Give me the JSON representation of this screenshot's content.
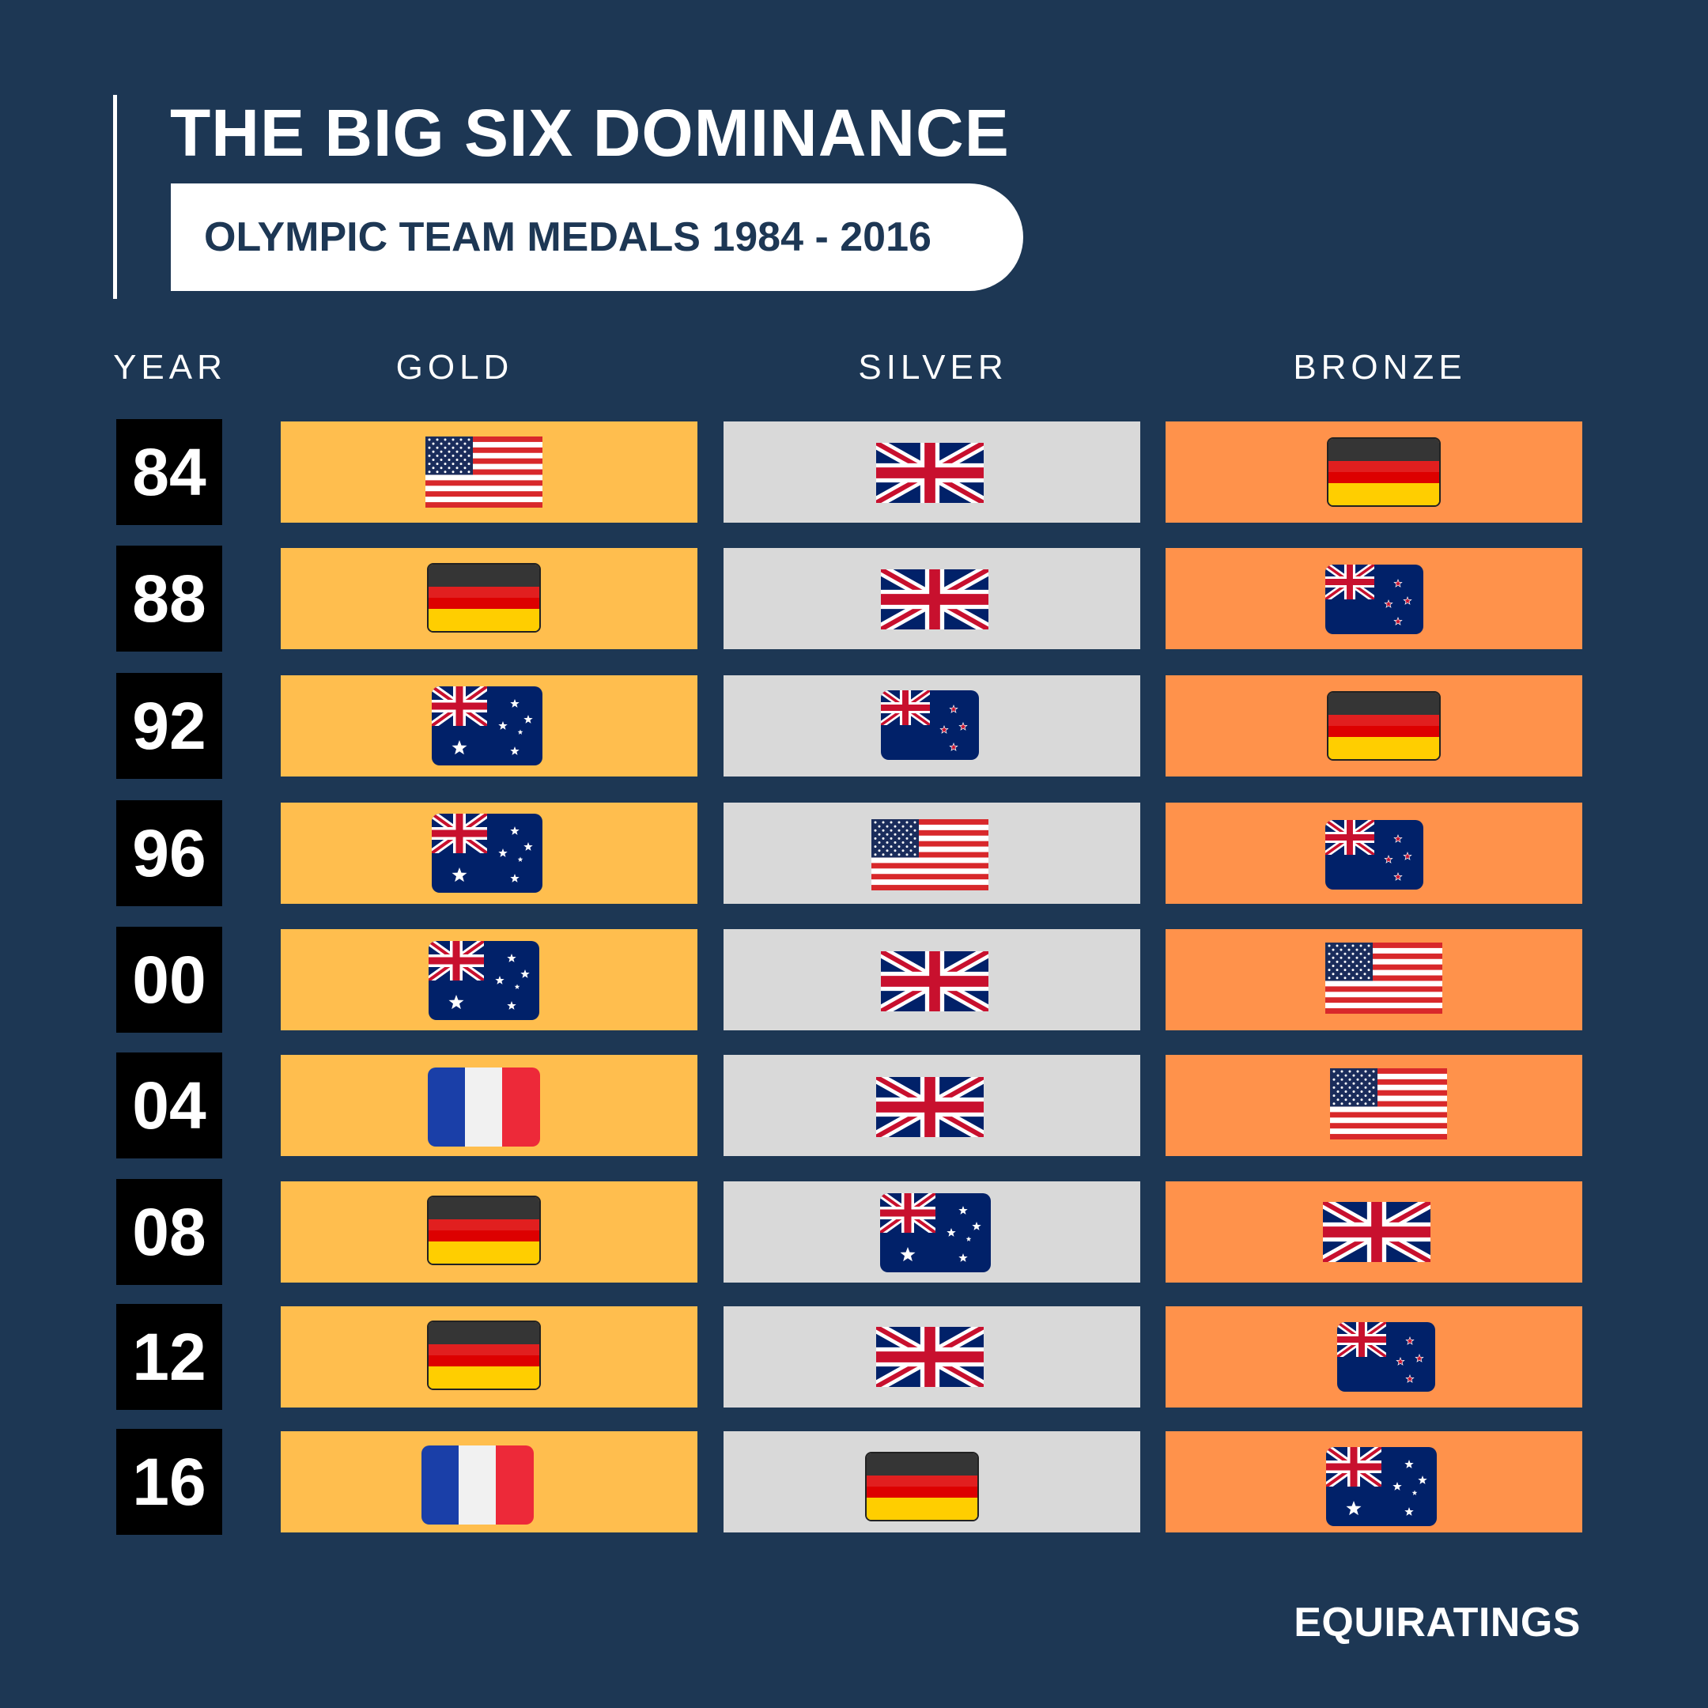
{
  "title": "THE BIG SIX DOMINANCE",
  "subtitle": "OLYMPIC TEAM MEDALS 1984 - 2016",
  "headers": {
    "year": "YEAR",
    "gold": "GOLD",
    "silver": "SILVER",
    "bronze": "BRONZE"
  },
  "rows": [
    {
      "year": "84",
      "gold": "usa",
      "silver": "gbr",
      "bronze": "ger"
    },
    {
      "year": "88",
      "gold": "ger",
      "silver": "gbr",
      "bronze": "nzl"
    },
    {
      "year": "92",
      "gold": "aus",
      "silver": "nzl",
      "bronze": "ger"
    },
    {
      "year": "96",
      "gold": "aus",
      "silver": "usa",
      "bronze": "nzl"
    },
    {
      "year": "00",
      "gold": "aus",
      "silver": "gbr",
      "bronze": "usa"
    },
    {
      "year": "04",
      "gold": "fra",
      "silver": "gbr",
      "bronze": "usa"
    },
    {
      "year": "08",
      "gold": "ger",
      "silver": "aus",
      "bronze": "gbr"
    },
    {
      "year": "12",
      "gold": "ger",
      "silver": "gbr",
      "bronze": "nzl"
    },
    {
      "year": "16",
      "gold": "fra",
      "silver": "ger",
      "bronze": "aus"
    }
  ],
  "colors": {
    "background": "#1d3754",
    "gold": "#ffbe4e",
    "silver": "#d9d9d9",
    "bronze": "#ff924b"
  },
  "brand": "EQUIRATINGS"
}
